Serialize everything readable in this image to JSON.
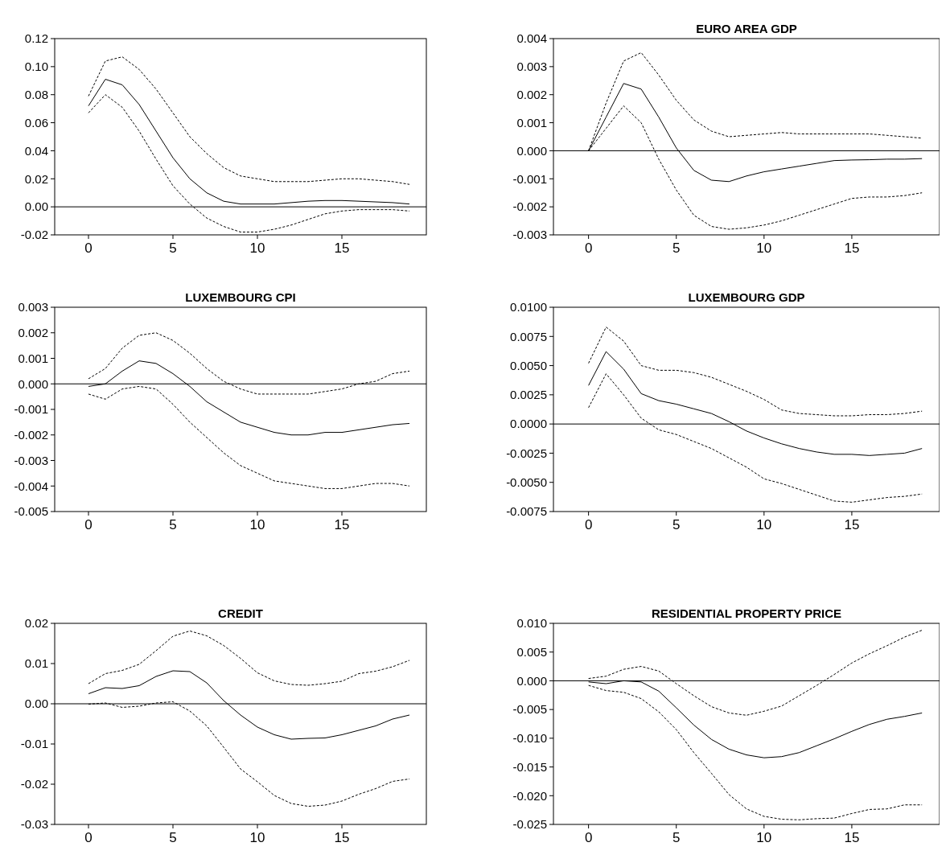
{
  "chart_data": [
    {
      "type": "line",
      "x": [
        0,
        1,
        2,
        3,
        4,
        5,
        6,
        7,
        8,
        9,
        10,
        11,
        12,
        13,
        14,
        15,
        16,
        17,
        18,
        19
      ],
      "xlim": [
        -2,
        20
      ],
      "xticks": [
        0,
        5,
        10,
        15
      ],
      "ylim": [
        -0.02,
        0.12
      ],
      "yticks": [
        {
          "value": -0.02,
          "label": "-0.02"
        },
        {
          "value": 0,
          "label": "0.00"
        },
        {
          "value": 0.02,
          "label": "0.02"
        },
        {
          "value": 0.04,
          "label": "0.04"
        },
        {
          "value": 0.06,
          "label": "0.06"
        },
        {
          "value": 0.08,
          "label": "0.08"
        },
        {
          "value": 0.1,
          "label": "0.10"
        },
        {
          "value": 0.12,
          "label": "0.12"
        }
      ],
      "ref_lines": [
        {
          "axis": "y",
          "value": 0,
          "color": "#000000"
        }
      ],
      "series": [
        {
          "color": "#000000",
          "line_style": "dashed",
          "values": [
            0.079,
            0.104,
            0.107,
            0.098,
            0.084,
            0.067,
            0.05,
            0.038,
            0.028,
            0.022,
            0.02,
            0.018,
            0.018,
            0.018,
            0.019,
            0.02,
            0.02,
            0.019,
            0.018,
            0.016
          ]
        },
        {
          "color": "#000000",
          "line_style": "solid",
          "values": [
            0.072,
            0.091,
            0.087,
            0.073,
            0.054,
            0.035,
            0.02,
            0.01,
            0.004,
            0.002,
            0.002,
            0.002,
            0.003,
            0.004,
            0.0045,
            0.0045,
            0.004,
            0.0035,
            0.003,
            0.002
          ]
        },
        {
          "color": "#000000",
          "line_style": "dashed",
          "values": [
            0.067,
            0.08,
            0.071,
            0.054,
            0.034,
            0.015,
            0.002,
            -0.008,
            -0.014,
            -0.018,
            -0.018,
            -0.016,
            -0.013,
            -0.009,
            -0.005,
            -0.003,
            -0.002,
            -0.002,
            -0.002,
            -0.003
          ]
        }
      ]
    },
    {
      "type": "line",
      "title": "EURO AREA GDP",
      "x": [
        0,
        1,
        2,
        3,
        4,
        5,
        6,
        7,
        8,
        9,
        10,
        11,
        12,
        13,
        14,
        15,
        16,
        17,
        18,
        19
      ],
      "xlim": [
        -2,
        20
      ],
      "xticks": [
        0,
        5,
        10,
        15
      ],
      "ylim": [
        -0.003,
        0.004
      ],
      "yticks": [
        {
          "value": -0.003,
          "label": "-0.003"
        },
        {
          "value": -0.002,
          "label": "-0.002"
        },
        {
          "value": -0.001,
          "label": "-0.001"
        },
        {
          "value": 0,
          "label": "0.000"
        },
        {
          "value": 0.001,
          "label": "0.001"
        },
        {
          "value": 0.002,
          "label": "0.002"
        },
        {
          "value": 0.003,
          "label": "0.003"
        },
        {
          "value": 0.004,
          "label": "0.004"
        }
      ],
      "ref_lines": [
        {
          "axis": "y",
          "value": 0,
          "color": "#000000"
        }
      ],
      "series": [
        {
          "color": "#000000",
          "line_style": "dashed",
          "values": [
            0,
            0.0017,
            0.0032,
            0.0035,
            0.0027,
            0.0018,
            0.0011,
            0.0007,
            0.0005,
            0.00055,
            0.0006,
            0.00065,
            0.0006,
            0.0006,
            0.0006,
            0.0006,
            0.0006,
            0.00055,
            0.0005,
            0.00045
          ]
        },
        {
          "color": "#000000",
          "line_style": "solid",
          "values": [
            0,
            0.0012,
            0.0024,
            0.0022,
            0.0012,
            0.0001,
            -0.0007,
            -0.00105,
            -0.0011,
            -0.0009,
            -0.00075,
            -0.00065,
            -0.00055,
            -0.00045,
            -0.00035,
            -0.00033,
            -0.00032,
            -0.0003,
            -0.0003,
            -0.00028
          ]
        },
        {
          "color": "#000000",
          "line_style": "dashed",
          "values": [
            0,
            0.0008,
            0.0016,
            0.001,
            -0.0003,
            -0.0014,
            -0.0023,
            -0.0027,
            -0.0028,
            -0.00275,
            -0.00265,
            -0.0025,
            -0.0023,
            -0.0021,
            -0.0019,
            -0.0017,
            -0.00165,
            -0.00165,
            -0.0016,
            -0.0015
          ]
        }
      ]
    },
    {
      "type": "line",
      "title": "LUXEMBOURG CPI",
      "x": [
        0,
        1,
        2,
        3,
        4,
        5,
        6,
        7,
        8,
        9,
        10,
        11,
        12,
        13,
        14,
        15,
        16,
        17,
        18,
        19
      ],
      "xlim": [
        -2,
        20
      ],
      "xticks": [
        0,
        5,
        10,
        15
      ],
      "ylim": [
        -0.005,
        0.003
      ],
      "yticks": [
        {
          "value": -0.005,
          "label": "-0.005"
        },
        {
          "value": -0.004,
          "label": "-0.004"
        },
        {
          "value": -0.003,
          "label": "-0.003"
        },
        {
          "value": -0.002,
          "label": "-0.002"
        },
        {
          "value": -0.001,
          "label": "-0.001"
        },
        {
          "value": 0,
          "label": "0.000"
        },
        {
          "value": 0.001,
          "label": "0.001"
        },
        {
          "value": 0.002,
          "label": "0.002"
        },
        {
          "value": 0.003,
          "label": "0.003"
        }
      ],
      "ref_lines": [
        {
          "axis": "y",
          "value": 0,
          "color": "#000000"
        }
      ],
      "series": [
        {
          "color": "#000000",
          "line_style": "dashed",
          "values": [
            0.0002,
            0.0006,
            0.0014,
            0.0019,
            0.002,
            0.0017,
            0.0012,
            0.0006,
            0.0001,
            -0.0002,
            -0.0004,
            -0.0004,
            -0.0004,
            -0.0004,
            -0.0003,
            -0.0002,
            0,
            0.0001,
            0.0004,
            0.0005
          ]
        },
        {
          "color": "#000000",
          "line_style": "solid",
          "values": [
            -0.0001,
            0,
            0.0005,
            0.0009,
            0.0008,
            0.0004,
            -0.0001,
            -0.0007,
            -0.0011,
            -0.0015,
            -0.0017,
            -0.0019,
            -0.002,
            -0.002,
            -0.0019,
            -0.0019,
            -0.0018,
            -0.0017,
            -0.0016,
            -0.00155
          ]
        },
        {
          "color": "#000000",
          "line_style": "dashed",
          "values": [
            -0.0004,
            -0.0006,
            -0.0002,
            -0.0001,
            -0.0002,
            -0.0008,
            -0.0015,
            -0.0021,
            -0.0027,
            -0.0032,
            -0.0035,
            -0.0038,
            -0.0039,
            -0.004,
            -0.0041,
            -0.0041,
            -0.004,
            -0.0039,
            -0.0039,
            -0.004
          ]
        }
      ]
    },
    {
      "type": "line",
      "title": "LUXEMBOURG GDP",
      "x": [
        0,
        1,
        2,
        3,
        4,
        5,
        6,
        7,
        8,
        9,
        10,
        11,
        12,
        13,
        14,
        15,
        16,
        17,
        18,
        19
      ],
      "xlim": [
        -2,
        20
      ],
      "xticks": [
        0,
        5,
        10,
        15
      ],
      "ylim": [
        -0.0075,
        0.01
      ],
      "yticks": [
        {
          "value": -0.0075,
          "label": "-0.0075"
        },
        {
          "value": -0.005,
          "label": "-0.0050"
        },
        {
          "value": -0.0025,
          "label": "-0.0025"
        },
        {
          "value": 0,
          "label": "0.0000"
        },
        {
          "value": 0.0025,
          "label": "0.0025"
        },
        {
          "value": 0.005,
          "label": "0.0050"
        },
        {
          "value": 0.0075,
          "label": "0.0075"
        },
        {
          "value": 0.01,
          "label": "0.0100"
        }
      ],
      "ref_lines": [
        {
          "axis": "y",
          "value": 0,
          "color": "#000000"
        }
      ],
      "series": [
        {
          "color": "#000000",
          "line_style": "dashed",
          "values": [
            0.0052,
            0.0083,
            0.0071,
            0.005,
            0.0046,
            0.0046,
            0.0044,
            0.004,
            0.0034,
            0.0028,
            0.0021,
            0.0012,
            0.0009,
            0.0008,
            0.0007,
            0.0007,
            0.0008,
            0.0008,
            0.0009,
            0.0011
          ]
        },
        {
          "color": "#000000",
          "line_style": "solid",
          "values": [
            0.0033,
            0.0062,
            0.0047,
            0.0026,
            0.002,
            0.0017,
            0.0013,
            0.0009,
            0.0002,
            -0.0006,
            -0.0012,
            -0.0017,
            -0.0021,
            -0.0024,
            -0.0026,
            -0.0026,
            -0.0027,
            -0.0026,
            -0.0025,
            -0.0021
          ]
        },
        {
          "color": "#000000",
          "line_style": "dashed",
          "values": [
            0.0014,
            0.0043,
            0.0025,
            0.0005,
            -0.0005,
            -0.0009,
            -0.0015,
            -0.0021,
            -0.0029,
            -0.0037,
            -0.0047,
            -0.0051,
            -0.0056,
            -0.0061,
            -0.0066,
            -0.0067,
            -0.0065,
            -0.0063,
            -0.0062,
            -0.006
          ]
        }
      ]
    },
    {
      "type": "line",
      "title": "CREDIT",
      "x": [
        0,
        1,
        2,
        3,
        4,
        5,
        6,
        7,
        8,
        9,
        10,
        11,
        12,
        13,
        14,
        15,
        16,
        17,
        18,
        19
      ],
      "xlim": [
        -2,
        20
      ],
      "xticks": [
        0,
        5,
        10,
        15
      ],
      "ylim": [
        -0.03,
        0.02
      ],
      "yticks": [
        {
          "value": -0.03,
          "label": "-0.03"
        },
        {
          "value": -0.02,
          "label": "-0.02"
        },
        {
          "value": -0.01,
          "label": "-0.01"
        },
        {
          "value": 0,
          "label": "0.00"
        },
        {
          "value": 0.01,
          "label": "0.01"
        },
        {
          "value": 0.02,
          "label": "0.02"
        }
      ],
      "ref_lines": [
        {
          "axis": "y",
          "value": 0,
          "color": "#000000"
        }
      ],
      "series": [
        {
          "color": "#000000",
          "line_style": "dashed",
          "values": [
            0.005,
            0.0075,
            0.0083,
            0.0098,
            0.0132,
            0.0168,
            0.0181,
            0.0169,
            0.0145,
            0.0113,
            0.0077,
            0.0057,
            0.0048,
            0.0046,
            0.005,
            0.0056,
            0.0075,
            0.0081,
            0.0092,
            0.0108
          ]
        },
        {
          "color": "#000000",
          "line_style": "solid",
          "values": [
            0.0025,
            0.004,
            0.0038,
            0.0045,
            0.0068,
            0.0082,
            0.008,
            0.0052,
            0.0008,
            -0.0028,
            -0.0058,
            -0.0077,
            -0.0088,
            -0.0086,
            -0.0085,
            -0.0077,
            -0.0066,
            -0.0055,
            -0.0038,
            -0.0028
          ]
        },
        {
          "color": "#000000",
          "line_style": "dashed",
          "values": [
            -0.0001,
            0.0002,
            -0.0009,
            -0.0006,
            0.0002,
            0.0005,
            -0.0018,
            -0.0055,
            -0.0108,
            -0.0162,
            -0.0194,
            -0.0228,
            -0.0248,
            -0.0255,
            -0.0252,
            -0.0242,
            -0.0225,
            -0.0211,
            -0.0193,
            -0.0187
          ]
        }
      ]
    },
    {
      "type": "line",
      "title": "RESIDENTIAL PROPERTY PRICE",
      "x": [
        0,
        1,
        2,
        3,
        4,
        5,
        6,
        7,
        8,
        9,
        10,
        11,
        12,
        13,
        14,
        15,
        16,
        17,
        18,
        19
      ],
      "xlim": [
        -2,
        20
      ],
      "xticks": [
        0,
        5,
        10,
        15
      ],
      "ylim": [
        -0.025,
        0.01
      ],
      "yticks": [
        {
          "value": -0.025,
          "label": "-0.025"
        },
        {
          "value": -0.02,
          "label": "-0.020"
        },
        {
          "value": -0.015,
          "label": "-0.015"
        },
        {
          "value": -0.01,
          "label": "-0.010"
        },
        {
          "value": -0.005,
          "label": "-0.005"
        },
        {
          "value": 0,
          "label": "0.000"
        },
        {
          "value": 0.005,
          "label": "0.005"
        },
        {
          "value": 0.01,
          "label": "0.010"
        }
      ],
      "ref_lines": [
        {
          "axis": "y",
          "value": 0,
          "color": "#000000"
        }
      ],
      "series": [
        {
          "color": "#000000",
          "line_style": "dashed",
          "values": [
            0.0004,
            0.0008,
            0.002,
            0.0025,
            0.0017,
            -0.0005,
            -0.0026,
            -0.0045,
            -0.0056,
            -0.006,
            -0.0053,
            -0.0044,
            -0.0026,
            -0.0008,
            0.0011,
            0.0031,
            0.0047,
            0.0061,
            0.0076,
            0.0088
          ]
        },
        {
          "color": "#000000",
          "line_style": "solid",
          "values": [
            -0.0002,
            -0.0005,
            0,
            -0.0002,
            -0.0018,
            -0.0047,
            -0.0077,
            -0.0102,
            -0.0119,
            -0.0129,
            -0.0134,
            -0.0132,
            -0.0125,
            -0.0113,
            -0.0101,
            -0.0088,
            -0.0076,
            -0.0067,
            -0.0062,
            -0.0056
          ]
        },
        {
          "color": "#000000",
          "line_style": "dashed",
          "values": [
            -0.0008,
            -0.0017,
            -0.002,
            -0.0031,
            -0.0054,
            -0.0085,
            -0.0125,
            -0.0161,
            -0.0198,
            -0.0223,
            -0.0236,
            -0.0241,
            -0.0242,
            -0.024,
            -0.0239,
            -0.0231,
            -0.0224,
            -0.0223,
            -0.0216,
            -0.0216
          ]
        }
      ]
    }
  ]
}
